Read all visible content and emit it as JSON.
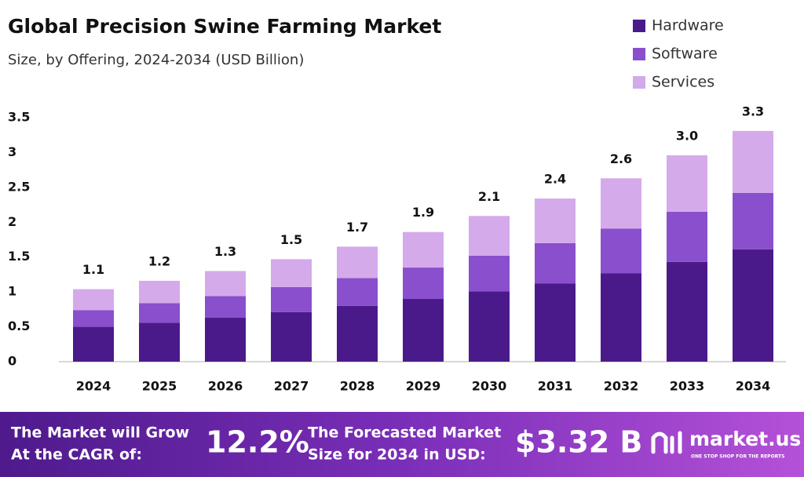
{
  "chart_data": {
    "type": "stacked-bar",
    "title": "Global Precision Swine Farming Market",
    "subtitle": "Size, by Offering, 2024-2034 (USD Billion)",
    "categories": [
      "2024",
      "2025",
      "2026",
      "2027",
      "2028",
      "2029",
      "2030",
      "2031",
      "2032",
      "2033",
      "2034"
    ],
    "series": [
      {
        "name": "Hardware",
        "color": "#4b1a8a",
        "values": [
          0.5,
          0.56,
          0.63,
          0.71,
          0.8,
          0.9,
          1.01,
          1.12,
          1.27,
          1.43,
          1.61
        ]
      },
      {
        "name": "Software",
        "color": "#8a4fcc",
        "values": [
          0.24,
          0.28,
          0.31,
          0.36,
          0.4,
          0.45,
          0.51,
          0.58,
          0.64,
          0.72,
          0.81
        ]
      },
      {
        "name": "Services",
        "color": "#d4aaeb",
        "values": [
          0.3,
          0.32,
          0.36,
          0.4,
          0.45,
          0.51,
          0.57,
          0.64,
          0.72,
          0.81,
          0.89
        ]
      }
    ],
    "totals": {
      "values": [
        1.1,
        1.2,
        1.3,
        1.5,
        1.7,
        1.9,
        2.1,
        2.4,
        2.6,
        3.0,
        3.3
      ],
      "value_labels": [
        "1.1",
        "1.2",
        "1.3",
        "1.5",
        "1.7",
        "1.9",
        "2.1",
        "2.4",
        "2.6",
        "3.0",
        "3.3"
      ]
    },
    "ylim": [
      0,
      3.5
    ],
    "yticks": [
      0,
      0.5,
      1,
      1.5,
      2,
      2.5,
      3,
      3.5
    ],
    "grid": false,
    "legend": "top-right"
  },
  "footer": {
    "cagr_text": [
      "The Market will Grow",
      "At the CAGR of:"
    ],
    "cagr_value": "12.2%",
    "forecast_text": [
      "The Forecasted Market",
      "Size for 2034 in USD:"
    ],
    "forecast_value": "$3.32 B",
    "brand": "market.us",
    "tagline": "ONE STOP SHOP FOR THE REPORTS"
  }
}
